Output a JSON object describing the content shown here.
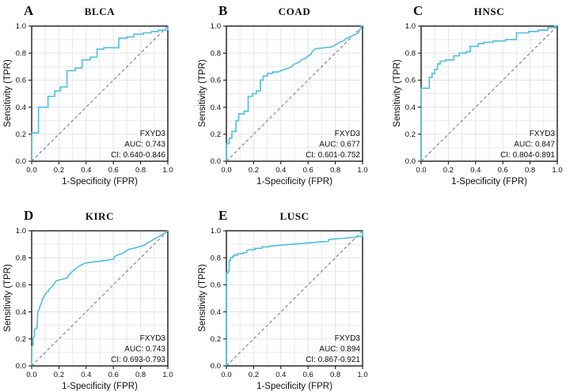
{
  "style": {
    "curve_color": "#57c1de",
    "diagonal_color": "#7d7d7d",
    "grid_color": "#e9e9e9",
    "border_color": "#1a1a1a",
    "background": "#ffffff"
  },
  "chart_data": [
    {
      "type": "line",
      "panel_label": "A",
      "title": "BLCA",
      "xlabel": "1-Specificity (FPR)",
      "ylabel": "Sensitivity (TPR)",
      "xlim": [
        0,
        1
      ],
      "ylim": [
        0,
        1
      ],
      "xticks": [
        "0.0",
        "0.2",
        "0.4",
        "0.6",
        "0.8",
        "1.0"
      ],
      "yticks": [
        "0.0",
        "0.2",
        "0.4",
        "0.6",
        "0.8",
        "1.0"
      ],
      "grid": true,
      "diagonal_reference": true,
      "gene": "FXYD3",
      "auc": 0.743,
      "ci": "0.640-0.846",
      "annotations": [
        "FXYD3",
        "AUC: 0.743",
        "CI: 0.640-0.846"
      ],
      "series": [
        {
          "name": "ROC curve",
          "color": "#57c1de",
          "points": [
            [
              0,
              0
            ],
            [
              0,
              0.21
            ],
            [
              0.05,
              0.21
            ],
            [
              0.05,
              0.4
            ],
            [
              0.12,
              0.4
            ],
            [
              0.12,
              0.48
            ],
            [
              0.17,
              0.48
            ],
            [
              0.17,
              0.52
            ],
            [
              0.21,
              0.52
            ],
            [
              0.21,
              0.55
            ],
            [
              0.26,
              0.55
            ],
            [
              0.26,
              0.67
            ],
            [
              0.32,
              0.67
            ],
            [
              0.32,
              0.69
            ],
            [
              0.37,
              0.69
            ],
            [
              0.37,
              0.75
            ],
            [
              0.43,
              0.75
            ],
            [
              0.43,
              0.77
            ],
            [
              0.48,
              0.77
            ],
            [
              0.48,
              0.83
            ],
            [
              0.53,
              0.83
            ],
            [
              0.53,
              0.84
            ],
            [
              0.64,
              0.84
            ],
            [
              0.64,
              0.91
            ],
            [
              0.7,
              0.91
            ],
            [
              0.7,
              0.92
            ],
            [
              0.75,
              0.92
            ],
            [
              0.75,
              0.94
            ],
            [
              0.82,
              0.94
            ],
            [
              0.82,
              0.95
            ],
            [
              0.88,
              0.95
            ],
            [
              0.88,
              0.96
            ],
            [
              0.93,
              0.96
            ],
            [
              0.93,
              0.97
            ],
            [
              1,
              0.97
            ],
            [
              1,
              1
            ]
          ]
        }
      ]
    },
    {
      "type": "line",
      "panel_label": "B",
      "title": "COAD",
      "xlabel": "1-Specificity (FPR)",
      "ylabel": "Sensitivity (TPR)",
      "xlim": [
        0,
        1
      ],
      "ylim": [
        0,
        1
      ],
      "xticks": [
        "0.0",
        "0.2",
        "0.4",
        "0.6",
        "0.8",
        "1.0"
      ],
      "yticks": [
        "0.0",
        "0.2",
        "0.4",
        "0.6",
        "0.8",
        "1.0"
      ],
      "grid": true,
      "diagonal_reference": true,
      "gene": "FXYD3",
      "auc": 0.677,
      "ci": "0.601-0.752",
      "annotations": [
        "FXYD3",
        "AUC: 0.677",
        "CI: 0.601-0.752"
      ],
      "series": [
        {
          "name": "ROC curve",
          "color": "#57c1de",
          "points": [
            [
              0,
              0
            ],
            [
              0,
              0.13
            ],
            [
              0.02,
              0.13
            ],
            [
              0.02,
              0.17
            ],
            [
              0.04,
              0.17
            ],
            [
              0.04,
              0.22
            ],
            [
              0.07,
              0.22
            ],
            [
              0.07,
              0.3
            ],
            [
              0.09,
              0.3
            ],
            [
              0.09,
              0.35
            ],
            [
              0.13,
              0.35
            ],
            [
              0.13,
              0.37
            ],
            [
              0.16,
              0.37
            ],
            [
              0.16,
              0.48
            ],
            [
              0.19,
              0.48
            ],
            [
              0.19,
              0.5
            ],
            [
              0.22,
              0.5
            ],
            [
              0.22,
              0.52
            ],
            [
              0.25,
              0.52
            ],
            [
              0.25,
              0.6
            ],
            [
              0.27,
              0.6
            ],
            [
              0.27,
              0.63
            ],
            [
              0.3,
              0.63
            ],
            [
              0.3,
              0.65
            ],
            [
              0.34,
              0.65
            ],
            [
              0.34,
              0.66
            ],
            [
              0.38,
              0.66
            ],
            [
              0.4,
              0.67
            ],
            [
              0.43,
              0.68
            ],
            [
              0.46,
              0.69
            ],
            [
              0.48,
              0.7
            ],
            [
              0.5,
              0.72
            ],
            [
              0.53,
              0.73
            ],
            [
              0.55,
              0.75
            ],
            [
              0.58,
              0.76
            ],
            [
              0.6,
              0.78
            ],
            [
              0.62,
              0.79
            ],
            [
              0.63,
              0.81
            ],
            [
              0.65,
              0.83
            ],
            [
              0.68,
              0.835
            ],
            [
              0.72,
              0.84
            ],
            [
              0.77,
              0.845
            ],
            [
              0.8,
              0.86
            ],
            [
              0.83,
              0.88
            ],
            [
              0.86,
              0.89
            ],
            [
              0.88,
              0.91
            ],
            [
              0.91,
              0.92
            ],
            [
              0.93,
              0.93
            ],
            [
              0.95,
              0.94
            ],
            [
              0.97,
              0.95
            ],
            [
              0.98,
              0.97
            ],
            [
              0.99,
              1
            ],
            [
              1,
              1
            ]
          ]
        }
      ]
    },
    {
      "type": "line",
      "panel_label": "C",
      "title": "HNSC",
      "xlabel": "1-Specificity (FPR)",
      "ylabel": "Sensitivity (TPR)",
      "xlim": [
        0,
        1
      ],
      "ylim": [
        0,
        1
      ],
      "xticks": [
        "0.0",
        "0.2",
        "0.4",
        "0.6",
        "0.8",
        "1.0"
      ],
      "yticks": [
        "0.0",
        "0.2",
        "0.4",
        "0.6",
        "0.8",
        "1.0"
      ],
      "grid": true,
      "diagonal_reference": true,
      "gene": "FXYD3",
      "auc": 0.847,
      "ci": "0.804-0.891",
      "annotations": [
        "FXYD3",
        "AUC: 0.847",
        "CI: 0.804-0.891"
      ],
      "series": [
        {
          "name": "ROC curve",
          "color": "#57c1de",
          "points": [
            [
              0,
              0
            ],
            [
              0,
              0.54
            ],
            [
              0.06,
              0.54
            ],
            [
              0.06,
              0.62
            ],
            [
              0.08,
              0.62
            ],
            [
              0.08,
              0.65
            ],
            [
              0.1,
              0.65
            ],
            [
              0.1,
              0.68
            ],
            [
              0.12,
              0.68
            ],
            [
              0.12,
              0.72
            ],
            [
              0.14,
              0.72
            ],
            [
              0.14,
              0.74
            ],
            [
              0.18,
              0.74
            ],
            [
              0.18,
              0.75
            ],
            [
              0.24,
              0.75
            ],
            [
              0.24,
              0.78
            ],
            [
              0.28,
              0.78
            ],
            [
              0.28,
              0.8
            ],
            [
              0.33,
              0.8
            ],
            [
              0.33,
              0.81
            ],
            [
              0.36,
              0.81
            ],
            [
              0.36,
              0.85
            ],
            [
              0.42,
              0.85
            ],
            [
              0.42,
              0.87
            ],
            [
              0.46,
              0.87
            ],
            [
              0.46,
              0.88
            ],
            [
              0.53,
              0.88
            ],
            [
              0.53,
              0.89
            ],
            [
              0.62,
              0.89
            ],
            [
              0.62,
              0.9
            ],
            [
              0.7,
              0.9
            ],
            [
              0.7,
              0.95
            ],
            [
              0.79,
              0.95
            ],
            [
              0.79,
              0.96
            ],
            [
              0.86,
              0.96
            ],
            [
              0.86,
              0.97
            ],
            [
              0.93,
              0.97
            ],
            [
              0.93,
              0.99
            ],
            [
              0.98,
              0.99
            ],
            [
              0.98,
              1
            ],
            [
              1,
              1
            ]
          ]
        }
      ]
    },
    {
      "type": "line",
      "panel_label": "D",
      "title": "KIRC",
      "xlabel": "1-Specificity (FPR)",
      "ylabel": "Sensitivity (TPR)",
      "xlim": [
        0,
        1
      ],
      "ylim": [
        0,
        1
      ],
      "xticks": [
        "0.0",
        "0.2",
        "0.4",
        "0.6",
        "0.8",
        "1.0"
      ],
      "yticks": [
        "0.0",
        "0.2",
        "0.4",
        "0.6",
        "0.8",
        "1.0"
      ],
      "grid": true,
      "diagonal_reference": true,
      "gene": "FXYD3",
      "auc": 0.743,
      "ci": "0.693-0.793",
      "annotations": [
        "FXYD3",
        "AUC: 0.743",
        "CI: 0.693-0.793"
      ],
      "series": [
        {
          "name": "ROC curve",
          "color": "#57c1de",
          "points": [
            [
              0,
              0
            ],
            [
              0,
              0.14
            ],
            [
              0.01,
              0.155
            ],
            [
              0.01,
              0.2
            ],
            [
              0.02,
              0.22
            ],
            [
              0.02,
              0.27
            ],
            [
              0.03,
              0.275
            ],
            [
              0.04,
              0.28
            ],
            [
              0.045,
              0.4
            ],
            [
              0.055,
              0.42
            ],
            [
              0.06,
              0.44
            ],
            [
              0.07,
              0.46
            ],
            [
              0.075,
              0.48
            ],
            [
              0.08,
              0.5
            ],
            [
              0.09,
              0.51
            ],
            [
              0.1,
              0.53
            ],
            [
              0.11,
              0.545
            ],
            [
              0.12,
              0.55
            ],
            [
              0.13,
              0.57
            ],
            [
              0.15,
              0.585
            ],
            [
              0.16,
              0.6
            ],
            [
              0.17,
              0.615
            ],
            [
              0.18,
              0.63
            ],
            [
              0.2,
              0.635
            ],
            [
              0.22,
              0.64
            ],
            [
              0.24,
              0.645
            ],
            [
              0.26,
              0.65
            ],
            [
              0.27,
              0.67
            ],
            [
              0.28,
              0.68
            ],
            [
              0.3,
              0.7
            ],
            [
              0.31,
              0.71
            ],
            [
              0.33,
              0.725
            ],
            [
              0.35,
              0.74
            ],
            [
              0.37,
              0.75
            ],
            [
              0.39,
              0.76
            ],
            [
              0.42,
              0.765
            ],
            [
              0.46,
              0.77
            ],
            [
              0.5,
              0.775
            ],
            [
              0.54,
              0.78
            ],
            [
              0.57,
              0.785
            ],
            [
              0.6,
              0.79
            ],
            [
              0.61,
              0.81
            ],
            [
              0.63,
              0.82
            ],
            [
              0.66,
              0.83
            ],
            [
              0.68,
              0.84
            ],
            [
              0.7,
              0.855
            ],
            [
              0.72,
              0.865
            ],
            [
              0.75,
              0.87
            ],
            [
              0.78,
              0.88
            ],
            [
              0.8,
              0.885
            ],
            [
              0.82,
              0.89
            ],
            [
              0.85,
              0.91
            ],
            [
              0.88,
              0.925
            ],
            [
              0.91,
              0.945
            ],
            [
              0.94,
              0.96
            ],
            [
              0.97,
              0.98
            ],
            [
              1,
              1
            ]
          ]
        }
      ]
    },
    {
      "type": "line",
      "panel_label": "E",
      "title": "LUSC",
      "xlabel": "1-Specificity (FPR)",
      "ylabel": "Sensitivity (TPR)",
      "xlim": [
        0,
        1
      ],
      "ylim": [
        0,
        1
      ],
      "xticks": [
        "0.0",
        "0.2",
        "0.4",
        "0.6",
        "0.8",
        "1.0"
      ],
      "yticks": [
        "0.0",
        "0.2",
        "0.4",
        "0.6",
        "0.8",
        "1.0"
      ],
      "grid": true,
      "diagonal_reference": true,
      "gene": "FXYD3",
      "auc": 0.894,
      "ci": "0.867-0.921",
      "annotations": [
        "FXYD3",
        "AUC: 0.894",
        "CI: 0.867-0.921"
      ],
      "series": [
        {
          "name": "ROC curve",
          "color": "#57c1de",
          "points": [
            [
              0,
              0
            ],
            [
              0,
              0.69
            ],
            [
              0.015,
              0.69
            ],
            [
              0.015,
              0.7
            ],
            [
              0.02,
              0.7
            ],
            [
              0.02,
              0.78
            ],
            [
              0.03,
              0.78
            ],
            [
              0.03,
              0.8
            ],
            [
              0.045,
              0.8
            ],
            [
              0.045,
              0.81
            ],
            [
              0.055,
              0.81
            ],
            [
              0.055,
              0.82
            ],
            [
              0.08,
              0.82
            ],
            [
              0.08,
              0.83
            ],
            [
              0.12,
              0.83
            ],
            [
              0.12,
              0.835
            ],
            [
              0.15,
              0.84
            ],
            [
              0.15,
              0.855
            ],
            [
              0.17,
              0.86
            ],
            [
              0.21,
              0.86
            ],
            [
              0.21,
              0.87
            ],
            [
              0.26,
              0.87
            ],
            [
              0.26,
              0.88
            ],
            [
              0.31,
              0.88
            ],
            [
              0.31,
              0.885
            ],
            [
              0.36,
              0.89
            ],
            [
              0.42,
              0.895
            ],
            [
              0.48,
              0.9
            ],
            [
              0.54,
              0.905
            ],
            [
              0.6,
              0.91
            ],
            [
              0.66,
              0.915
            ],
            [
              0.72,
              0.92
            ],
            [
              0.75,
              0.92
            ],
            [
              0.75,
              0.935
            ],
            [
              0.8,
              0.94
            ],
            [
              0.86,
              0.945
            ],
            [
              0.92,
              0.95
            ],
            [
              0.95,
              0.95
            ],
            [
              0.95,
              0.955
            ],
            [
              1,
              0.96
            ],
            [
              1,
              1
            ]
          ]
        }
      ]
    }
  ]
}
